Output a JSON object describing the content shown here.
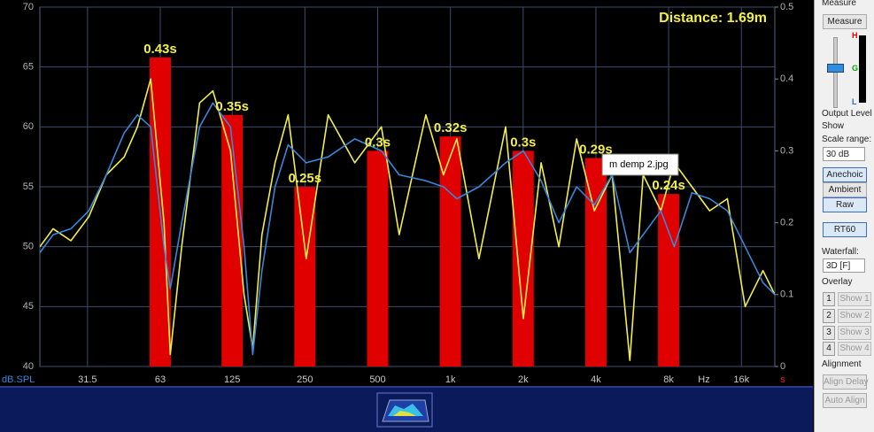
{
  "chart_data": {
    "type": "line",
    "annotation": "Distance: 1.69m",
    "tooltip": "m demp 2.jpg",
    "ylabel": "dB.SPL",
    "x_unit_label": "Hz",
    "y2label": "s",
    "log_x": true,
    "grid": true,
    "xlim": [
      20,
      22000
    ],
    "xticks": [
      31.5,
      63,
      125,
      250,
      500,
      {
        "value": 1000,
        "label": "1k"
      },
      {
        "value": 2000,
        "label": "2k"
      },
      {
        "value": 4000,
        "label": "4k"
      },
      {
        "value": 8000,
        "label": "8k"
      },
      {
        "value": 16000,
        "label": "16k"
      }
    ],
    "ylim": [
      40,
      70
    ],
    "yticks": [
      40,
      45,
      50,
      55,
      60,
      65,
      70
    ],
    "y2lim": [
      0,
      0.5
    ],
    "y2ticks": [
      0,
      0.1,
      0.2,
      0.3,
      0.4,
      0.5
    ],
    "x": [
      20,
      22.7,
      26.9,
      31.9,
      37.7,
      44.7,
      50.7,
      57.5,
      65.3,
      69.3,
      77.3,
      91.6,
      104,
      123,
      140,
      152,
      166,
      188,
      213,
      253,
      312,
      402,
      518,
      614,
      791,
      936,
      1063,
      1313,
      1692,
      2003,
      2373,
      2810,
      3328,
      3942,
      4668,
      5528,
      6272,
      7427,
      8435,
      9984,
      11822,
      14000,
      16580,
      19640,
      22000
    ],
    "series": [
      {
        "type": "line",
        "color": "#f2ee4c",
        "values": [
          50,
          51.5,
          50.5,
          52.5,
          56,
          57.5,
          60,
          64,
          52,
          41,
          50,
          62,
          63,
          58,
          46,
          41.5,
          51,
          57,
          61,
          49,
          61,
          57,
          60,
          51,
          61,
          56,
          59,
          49,
          60,
          44,
          57,
          50,
          59,
          53,
          56,
          40.5,
          56,
          53,
          57,
          55,
          53,
          54,
          45,
          48,
          46
        ]
      },
      {
        "type": "line",
        "color": "#3a86d8",
        "values": [
          49.5,
          51,
          51.5,
          53,
          56,
          59.5,
          61,
          60,
          50,
          46.5,
          52,
          60,
          62,
          60,
          50,
          41,
          48,
          55,
          58.5,
          57,
          57.5,
          59,
          58,
          56,
          55.5,
          55,
          54,
          55,
          57,
          58,
          55.5,
          52,
          55,
          53.5,
          56,
          49.5,
          51,
          53,
          50,
          54.5,
          54,
          53,
          50,
          47,
          46
        ]
      },
      {
        "type": "bar",
        "axis": "y2",
        "color": "#e00000",
        "x": [
          63,
          125,
          250,
          500,
          1000,
          2000,
          4000,
          8000
        ],
        "values": [
          0.43,
          0.35,
          0.25,
          0.3,
          0.32,
          0.3,
          0.29,
          0.24
        ],
        "value_labels": [
          "0.43s",
          "0.35s",
          "0.25s",
          "0.3s",
          "0.32s",
          "0.3s",
          "0.29s",
          "0.24s"
        ]
      }
    ]
  },
  "panel": {
    "measure_group": "Measure",
    "measure_button": "Measure",
    "meter_labels": [
      "H",
      "G",
      "L"
    ],
    "output_level": "Output Level",
    "show_group": "Show",
    "scale_range_label": "Scale range:",
    "scale_range": "30 dB",
    "buttons": [
      "Anechoic",
      "Ambient",
      "Raw"
    ],
    "rt60_button": "RT60",
    "waterfall_label": "Waterfall:",
    "waterfall": "3D [F]",
    "overlay_group": "Overlay",
    "overlays": [
      {
        "number": 1,
        "button": "Show 1"
      },
      {
        "number": 2,
        "button": "Show 2"
      },
      {
        "number": 3,
        "button": "Show 3"
      },
      {
        "number": 4,
        "button": "Show 4"
      }
    ],
    "alignment_group": "Alignment",
    "align_delay": "Align Delay",
    "auto_align": "Auto Align"
  }
}
